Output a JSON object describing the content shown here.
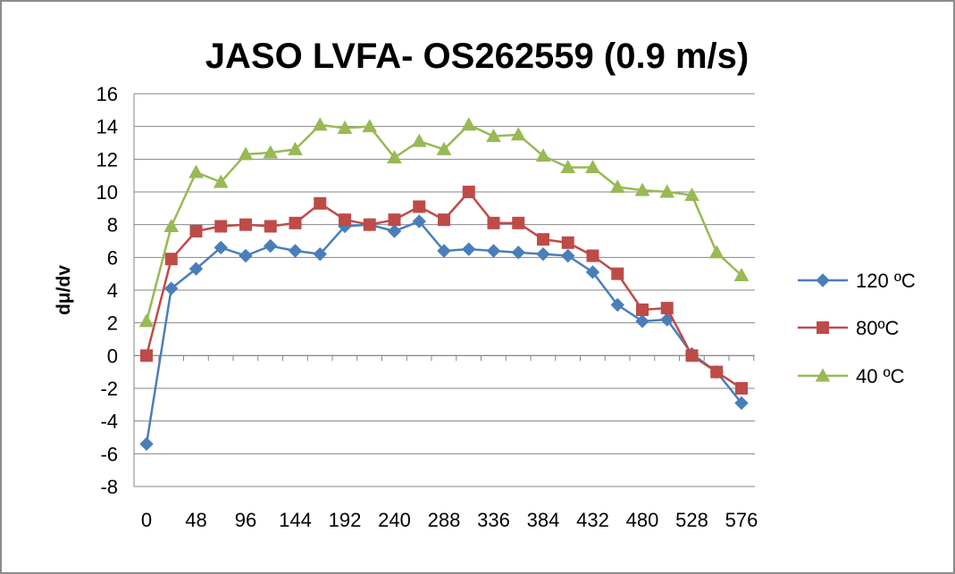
{
  "chart_data": {
    "type": "line",
    "title": "JASO LVFA- OS262559 (0.9 m/s)",
    "xlabel": "",
    "ylabel": "dμ/dv",
    "x": [
      0,
      24,
      48,
      72,
      96,
      120,
      144,
      168,
      192,
      216,
      240,
      264,
      288,
      312,
      336,
      360,
      384,
      408,
      432,
      456,
      480,
      504,
      528,
      552,
      576
    ],
    "x_tick_labels": [
      "0",
      "48",
      "96",
      "144",
      "192",
      "240",
      "288",
      "336",
      "384",
      "432",
      "480",
      "528",
      "576"
    ],
    "y_tick_labels": [
      "16",
      "14",
      "12",
      "10",
      "8",
      "6",
      "4",
      "2",
      "0",
      "-2",
      "-4",
      "-6",
      "-8"
    ],
    "ylim": [
      -8,
      16
    ],
    "y_ticks": [
      -8,
      -6,
      -4,
      -2,
      0,
      2,
      4,
      6,
      8,
      10,
      12,
      14,
      16
    ],
    "grid": true,
    "legend_position": "right",
    "series": [
      {
        "name": "120 ºC",
        "color": "#4a7ebb",
        "marker": "diamond",
        "values": [
          -5.4,
          4.1,
          5.3,
          6.6,
          6.1,
          6.7,
          6.4,
          6.2,
          7.9,
          8.0,
          7.6,
          8.2,
          6.4,
          6.5,
          6.4,
          6.3,
          6.2,
          6.1,
          5.1,
          3.1,
          2.1,
          2.2,
          0.1,
          -1.0,
          -2.9
        ]
      },
      {
        "name": "80ºC",
        "color": "#be4b48",
        "marker": "square",
        "values": [
          0.0,
          5.9,
          7.6,
          7.9,
          8.0,
          7.9,
          8.1,
          9.3,
          8.3,
          8.0,
          8.3,
          9.1,
          8.3,
          10.0,
          8.1,
          8.1,
          7.1,
          6.9,
          6.1,
          5.0,
          2.8,
          2.9,
          0.0,
          -1.0,
          -2.0
        ]
      },
      {
        "name": "40 ºC",
        "color": "#98b954",
        "marker": "triangle",
        "values": [
          2.1,
          7.9,
          11.2,
          10.6,
          12.3,
          12.4,
          12.6,
          14.1,
          13.9,
          14.0,
          12.1,
          13.1,
          12.6,
          14.1,
          13.4,
          13.5,
          12.2,
          11.5,
          11.5,
          10.3,
          10.1,
          10.0,
          9.8,
          6.3,
          4.9
        ]
      }
    ]
  }
}
